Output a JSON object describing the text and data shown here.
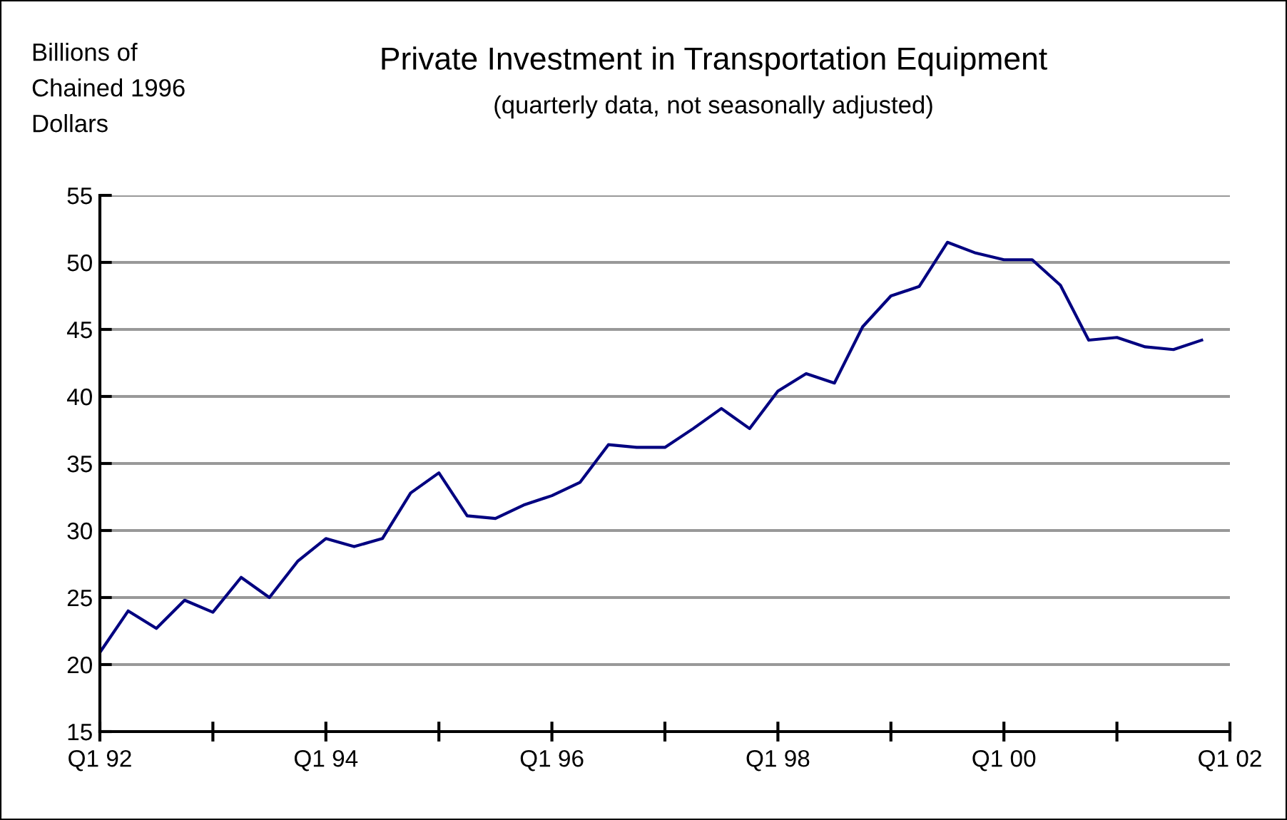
{
  "chart_data": {
    "type": "line",
    "title": "Private Investment in Transportation Equipment",
    "subtitle": "(quarterly data, not seasonally adjusted)",
    "ylabel": "Billions of\nChained 1996\nDollars",
    "categories": [
      "Q1 92",
      null,
      null,
      null,
      null,
      null,
      null,
      null,
      "Q1 94",
      null,
      null,
      null,
      null,
      null,
      null,
      null,
      "Q1 96",
      null,
      null,
      null,
      null,
      null,
      null,
      null,
      "Q1 98",
      null,
      null,
      null,
      null,
      null,
      null,
      null,
      "Q1 00",
      null,
      null,
      null,
      null,
      null,
      null,
      null,
      "Q1 02"
    ],
    "series": [
      {
        "color": "#000080",
        "values": [
          20.9,
          24.0,
          22.7,
          24.8,
          23.9,
          26.5,
          25.0,
          27.7,
          29.4,
          28.8,
          29.4,
          32.8,
          34.3,
          31.1,
          30.9,
          31.9,
          32.6,
          33.6,
          36.4,
          36.2,
          36.2,
          37.6,
          39.1,
          37.6,
          40.4,
          41.7,
          41.0,
          45.2,
          47.5,
          48.2,
          51.5,
          50.7,
          50.2,
          50.2,
          48.3,
          44.2,
          44.4,
          43.7,
          43.5,
          44.2,
          null
        ]
      }
    ],
    "ylim": [
      15,
      55
    ],
    "yticks": [
      15,
      20,
      25,
      30,
      35,
      40,
      45,
      50,
      55
    ],
    "grid": "y",
    "marker": "none",
    "line_style": "solid"
  }
}
